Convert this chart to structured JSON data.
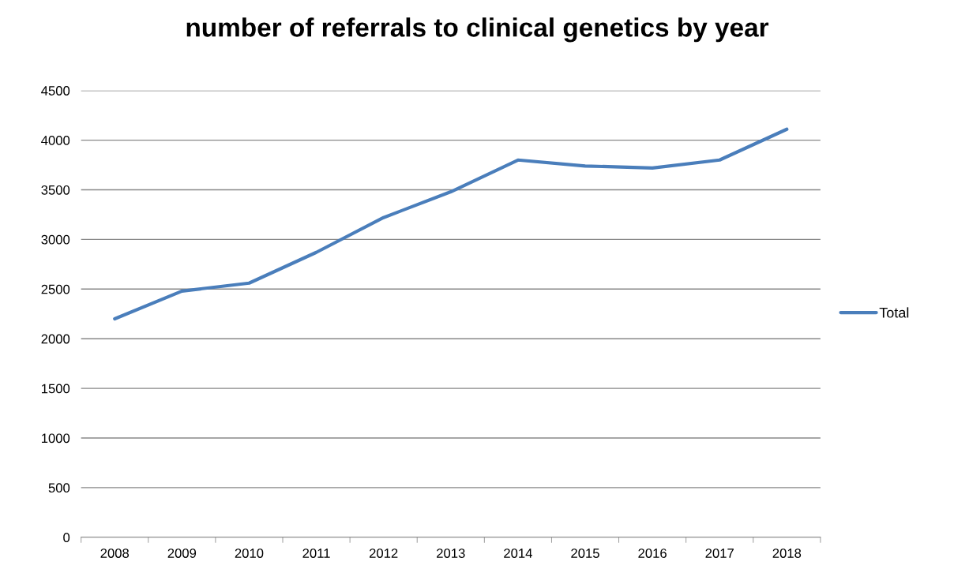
{
  "chart_data": {
    "type": "line",
    "title": "number of referrals to clinical genetics by year",
    "categories": [
      "2008",
      "2009",
      "2010",
      "2011",
      "2012",
      "2013",
      "2014",
      "2015",
      "2016",
      "2017",
      "2018"
    ],
    "series": [
      {
        "name": "Total",
        "color": "#4a7ebb",
        "values": [
          2200,
          2480,
          2560,
          2870,
          3220,
          3480,
          3800,
          3740,
          3720,
          3800,
          4110
        ]
      }
    ],
    "ylim": [
      0,
      4500
    ],
    "yticks": [
      0,
      500,
      1000,
      1500,
      2000,
      2500,
      3000,
      3500,
      4000,
      4500
    ],
    "grid": "y",
    "legend": "right",
    "marker": "none",
    "line_style": "solid"
  }
}
